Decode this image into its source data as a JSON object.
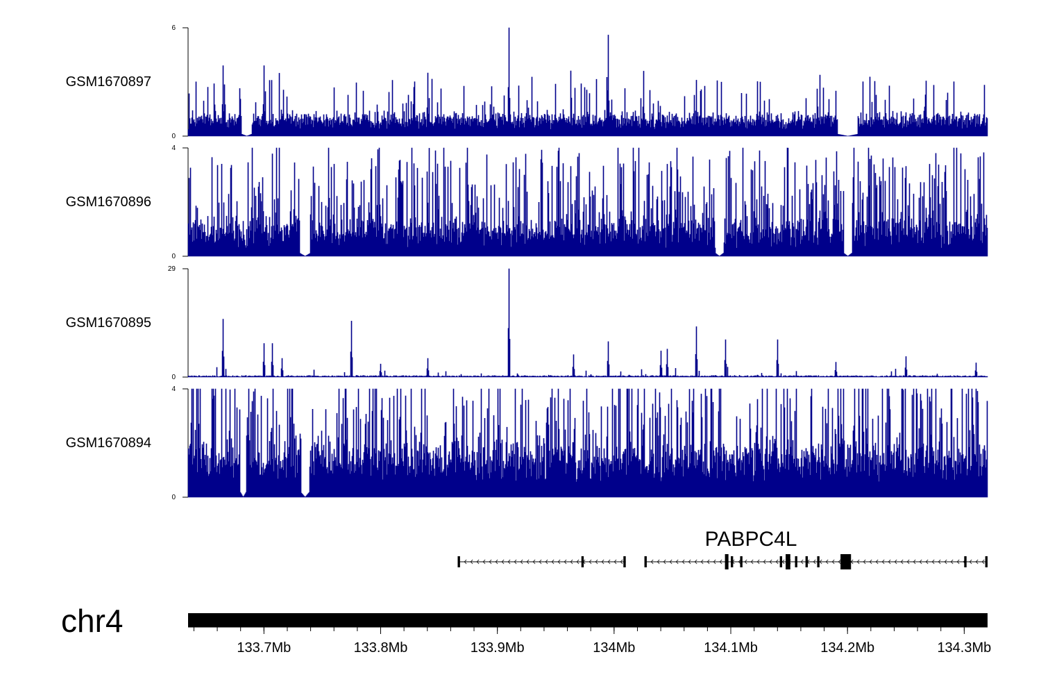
{
  "chart_data": {
    "type": "area",
    "title": "",
    "chromosome": "chr4",
    "xlabel": "",
    "xlim_mb": [
      133.635,
      134.32
    ],
    "x_ticks": [
      {
        "value": 133.7,
        "label": "133.7Mb"
      },
      {
        "value": 133.8,
        "label": "133.8Mb"
      },
      {
        "value": 133.9,
        "label": "133.9Mb"
      },
      {
        "value": 134.0,
        "label": "134Mb"
      },
      {
        "value": 134.1,
        "label": "134.1Mb"
      },
      {
        "value": 134.2,
        "label": "134.2Mb"
      },
      {
        "value": 134.3,
        "label": "134.3Mb"
      }
    ],
    "track_color": "#00008b",
    "tracks": [
      {
        "name": "GSM1670897",
        "ymax": 6,
        "ymax_label": "6",
        "ymin_label": "0",
        "baseline": 1.0,
        "noise": 0.4,
        "spike_prob": 0.12,
        "spike_max": 2.4,
        "peaks": [
          [
            133.665,
            3.9
          ],
          [
            133.7,
            3.9
          ],
          [
            133.84,
            3.5
          ],
          [
            133.91,
            6.0
          ],
          [
            133.995,
            5.6
          ],
          [
            133.995,
            2.6
          ],
          [
            134.025,
            3.6
          ],
          [
            134.07,
            3.1
          ],
          [
            134.125,
            3.0
          ],
          [
            134.19,
            2.5
          ]
        ],
        "dips": [
          [
            133.685,
            0.004
          ],
          [
            134.2,
            0.008
          ]
        ]
      },
      {
        "name": "GSM1670896",
        "ymax": 4,
        "ymax_label": "4",
        "ymin_label": "0",
        "baseline": 1.0,
        "noise": 0.6,
        "spike_prob": 0.35,
        "spike_max": 3.2,
        "peaks": [
          [
            133.69,
            4.0
          ],
          [
            133.755,
            4.0
          ],
          [
            133.76,
            3.4
          ],
          [
            133.97,
            3.8
          ],
          [
            134.045,
            3.4
          ],
          [
            134.12,
            3.5
          ],
          [
            134.23,
            3.6
          ],
          [
            134.27,
            3.4
          ]
        ],
        "dips": [
          [
            133.735,
            0.004
          ],
          [
            134.09,
            0.003
          ],
          [
            134.2,
            0.003
          ]
        ]
      },
      {
        "name": "GSM1670895",
        "ymax": 29,
        "ymax_label": "29",
        "ymin_label": "0",
        "baseline": 0.25,
        "noise": 0.3,
        "spike_prob": 0.03,
        "spike_max": 2.5,
        "peaks": [
          [
            133.665,
            15.5
          ],
          [
            133.7,
            9.0
          ],
          [
            133.707,
            9.0
          ],
          [
            133.715,
            5.0
          ],
          [
            133.775,
            15.0
          ],
          [
            133.8,
            3.5
          ],
          [
            133.84,
            5.0
          ],
          [
            133.91,
            29.0
          ],
          [
            133.965,
            6.0
          ],
          [
            133.995,
            9.5
          ],
          [
            134.04,
            7.0
          ],
          [
            134.045,
            7.5
          ],
          [
            134.07,
            13.5
          ],
          [
            134.095,
            10.0
          ],
          [
            134.14,
            10.0
          ],
          [
            134.19,
            4.0
          ],
          [
            134.25,
            5.5
          ],
          [
            134.31,
            3.8
          ]
        ],
        "dips": []
      },
      {
        "name": "GSM1670894",
        "ymax": 4,
        "ymax_label": "4",
        "ymin_label": "0",
        "baseline": 1.5,
        "noise": 0.7,
        "spike_prob": 0.35,
        "spike_max": 3.4,
        "peaks": [
          [
            133.645,
            4.0
          ],
          [
            133.655,
            4.0
          ],
          [
            133.79,
            4.0
          ],
          [
            133.795,
            4.0
          ],
          [
            134.09,
            4.0
          ],
          [
            133.87,
            3.7
          ],
          [
            134.0,
            3.4
          ]
        ],
        "dips": [
          [
            133.735,
            0.003
          ],
          [
            133.682,
            0.002
          ]
        ]
      }
    ],
    "gene": {
      "name": "PABPC4L",
      "strand": "-",
      "introns": [
        [
          133.867,
          134.01
        ],
        [
          134.027,
          134.32
        ]
      ],
      "exons": [
        [
          133.866,
          133.868
        ],
        [
          133.972,
          133.974
        ],
        [
          134.008,
          134.01
        ],
        [
          134.026,
          134.028
        ],
        [
          134.095,
          134.098
        ],
        [
          134.1,
          134.102
        ],
        [
          134.108,
          134.11
        ],
        [
          134.142,
          134.144
        ],
        [
          134.147,
          134.151
        ],
        [
          134.155,
          134.157
        ],
        [
          134.164,
          134.166
        ],
        [
          134.174,
          134.176
        ],
        [
          134.194,
          134.201
        ],
        [
          134.2,
          134.203
        ],
        [
          134.3,
          134.302
        ],
        [
          134.318,
          134.32
        ]
      ]
    }
  }
}
